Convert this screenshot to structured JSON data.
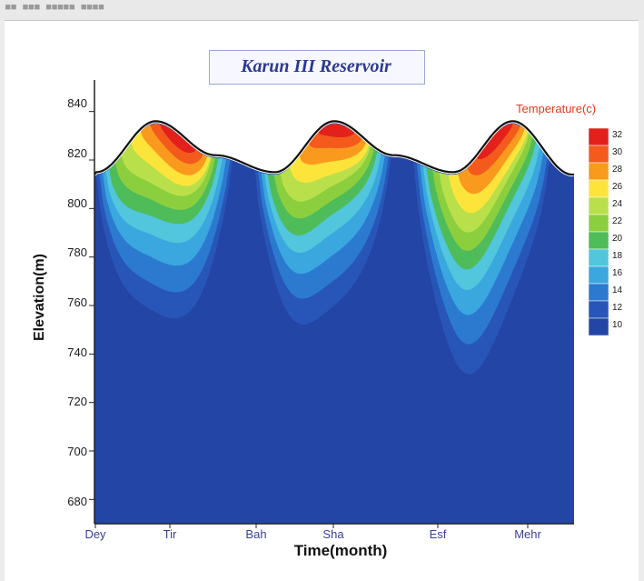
{
  "chart_data": {
    "type": "heatmap",
    "title": "Karun III Reservoir",
    "xlabel": "Time(month)",
    "ylabel": "Elevation(m)",
    "x_ticks": [
      "Dey",
      "Tir",
      "Bah",
      "Sha",
      "Esf",
      "Mehr"
    ],
    "y_ticks": [
      840,
      820,
      800,
      780,
      760,
      740,
      720,
      700,
      680
    ],
    "ylim": [
      670,
      850
    ],
    "legend_title": "Temperature(c)",
    "legend": [
      {
        "label": "32",
        "color": "#e3201b"
      },
      {
        "label": "30",
        "color": "#f35a1c"
      },
      {
        "label": "28",
        "color": "#f99a1f"
      },
      {
        "label": "26",
        "color": "#fde43a"
      },
      {
        "label": "24",
        "color": "#b9e04a"
      },
      {
        "label": "22",
        "color": "#8ccf3e"
      },
      {
        "label": "20",
        "color": "#4fbc5a"
      },
      {
        "label": "18",
        "color": "#51c6dc"
      },
      {
        "label": "16",
        "color": "#3aa7de"
      },
      {
        "label": "14",
        "color": "#2b7ad0"
      },
      {
        "label": "12",
        "color": "#2856b8"
      },
      {
        "label": "10",
        "color": "#2345a6"
      }
    ],
    "water_surface_elevation": [
      815,
      836,
      822,
      815,
      836,
      822,
      815,
      836,
      814
    ],
    "grid": false,
    "legend_placement": "right"
  },
  "colors": {
    "background": "#2448a8",
    "surface_line": "#111111",
    "title": "#2c3990",
    "legend_title": "#e33a1a"
  }
}
